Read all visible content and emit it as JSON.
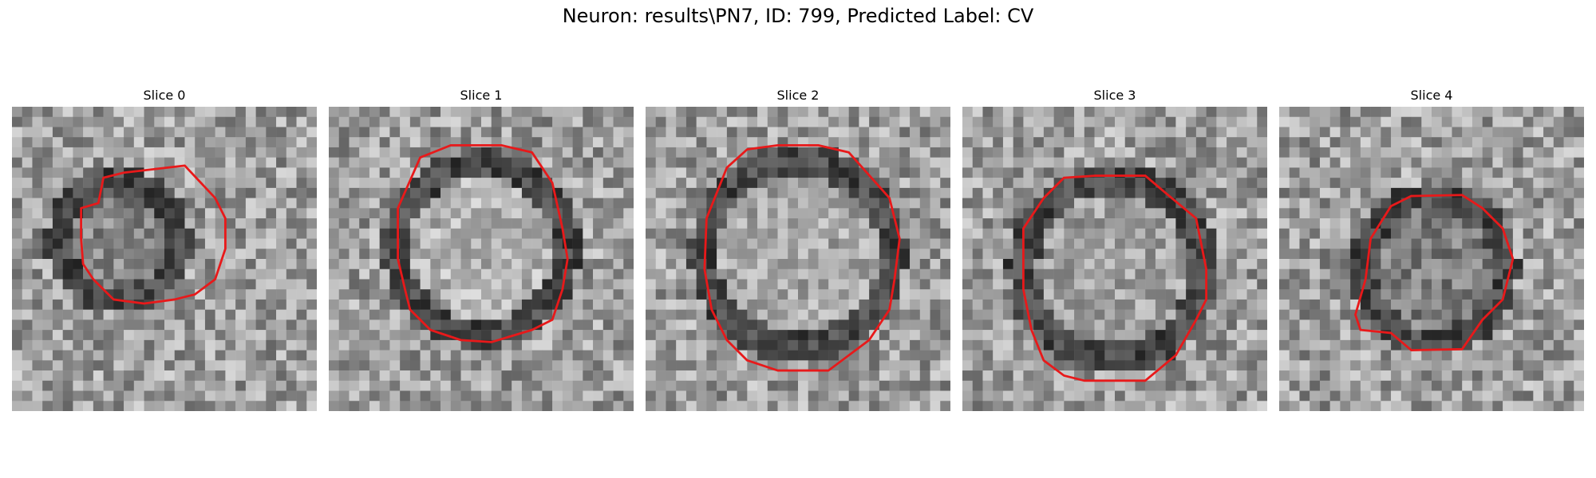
{
  "figure": {
    "suptitle": "Neuron: results\\PN7, ID: 799, Predicted Label: CV"
  },
  "slices": [
    {
      "title": "Slice 0",
      "icon": "grayscale-micrograph-with-red-contour",
      "contour_color": "#e8191a"
    },
    {
      "title": "Slice 1",
      "icon": "grayscale-micrograph-with-red-contour",
      "contour_color": "#e8191a"
    },
    {
      "title": "Slice 2",
      "icon": "grayscale-micrograph-with-red-contour",
      "contour_color": "#e8191a"
    },
    {
      "title": "Slice 3",
      "icon": "grayscale-micrograph-with-red-contour",
      "contour_color": "#e8191a"
    },
    {
      "title": "Slice 4",
      "icon": "grayscale-micrograph-with-red-contour",
      "contour_color": "#e8191a"
    }
  ]
}
